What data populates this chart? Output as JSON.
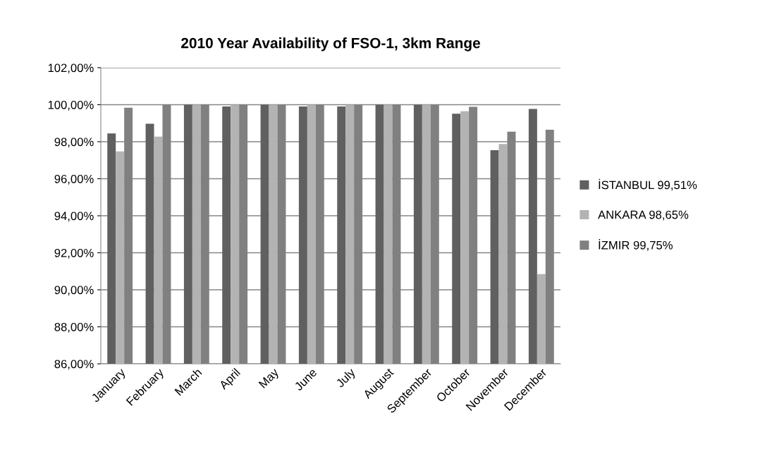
{
  "chart_data": {
    "type": "bar",
    "title": "2010 Year Availability of FSO-1, 3km Range",
    "categories": [
      "January",
      "February",
      "March",
      "April",
      "May",
      "June",
      "July",
      "August",
      "September",
      "October",
      "November",
      "December"
    ],
    "series": [
      {
        "name": "İSTANBUL 99,51%",
        "color": "#606060",
        "values": [
          98.45,
          98.97,
          100,
          99.9,
          100,
          99.9,
          99.9,
          100,
          100,
          99.51,
          97.54,
          99.77
        ]
      },
      {
        "name": "ANKARA 98,65%",
        "color": "#b3b3b3",
        "values": [
          97.48,
          98.28,
          100,
          100,
          100,
          100,
          100,
          100,
          100,
          99.65,
          97.88,
          90.85
        ]
      },
      {
        "name": "İZMIR 99,75%",
        "color": "#808080",
        "values": [
          99.84,
          100,
          100,
          100,
          100,
          100,
          100,
          100,
          100,
          99.89,
          98.54,
          98.65
        ]
      }
    ],
    "ylim": [
      86,
      102
    ],
    "yticks": [
      {
        "value": 86,
        "label": "86,00%"
      },
      {
        "value": 88,
        "label": "88,00%"
      },
      {
        "value": 90,
        "label": "90,00%"
      },
      {
        "value": 92,
        "label": "92,00%"
      },
      {
        "value": 94,
        "label": "94,00%"
      },
      {
        "value": 96,
        "label": "96,00%"
      },
      {
        "value": 98,
        "label": "98,00%"
      },
      {
        "value": 100,
        "label": "100,00%"
      },
      {
        "value": 102,
        "label": "102,00%"
      }
    ],
    "grid": "y",
    "legend": "right"
  }
}
